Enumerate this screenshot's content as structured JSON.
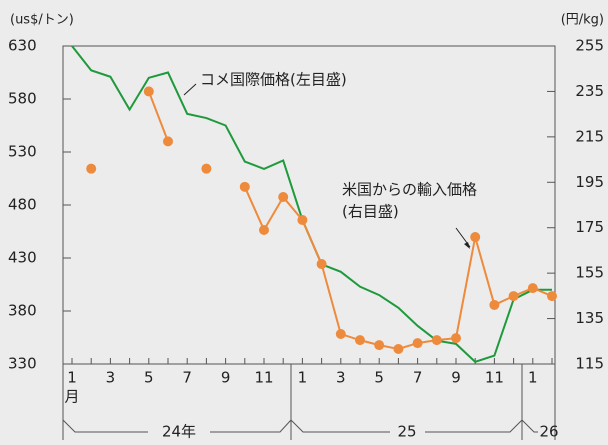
{
  "chart_data": {
    "type": "line",
    "y_axis_label": "(us$/トン)",
    "y2_axis_label": "(円/kg)",
    "categories": [
      "1",
      null,
      "3",
      null,
      "5",
      null,
      "7",
      null,
      "9",
      null,
      "11",
      null,
      "1",
      null,
      "3",
      null,
      "5",
      null,
      "7",
      null,
      "9",
      null,
      "11",
      null,
      "1",
      null
    ],
    "x_unit_label": "月",
    "x_group_labels": [
      "24年",
      "25",
      "26"
    ],
    "series": [
      {
        "name": "コメ国際価格(左目盛)",
        "color": "#1e9a3c",
        "axis": "y",
        "values": [
          630,
          607,
          601,
          570,
          600,
          605,
          566,
          562,
          555,
          521,
          514,
          522,
          466,
          424,
          417,
          403,
          395,
          383,
          366,
          352,
          349,
          332,
          338,
          391,
          400,
          400
        ]
      },
      {
        "name": "米国からの輸入価格",
        "name_sub": "(右目盛)",
        "color": "#ee8a3c",
        "axis": "y2",
        "values": [
          null,
          201,
          null,
          null,
          235,
          213,
          null,
          201,
          null,
          193,
          174,
          188.5,
          178.4,
          159,
          128.2,
          125.5,
          123.3,
          121.6,
          124.2,
          125.5,
          126.4,
          170.9,
          141,
          144.9,
          148.4,
          144.9
        ]
      }
    ],
    "ylim": [
      330,
      630
    ],
    "yticks": [
      330,
      380,
      430,
      480,
      530,
      580,
      630
    ],
    "y2lim": [
      115,
      255
    ],
    "y2ticks": [
      115,
      135,
      155,
      175,
      195,
      215,
      235,
      255
    ]
  }
}
